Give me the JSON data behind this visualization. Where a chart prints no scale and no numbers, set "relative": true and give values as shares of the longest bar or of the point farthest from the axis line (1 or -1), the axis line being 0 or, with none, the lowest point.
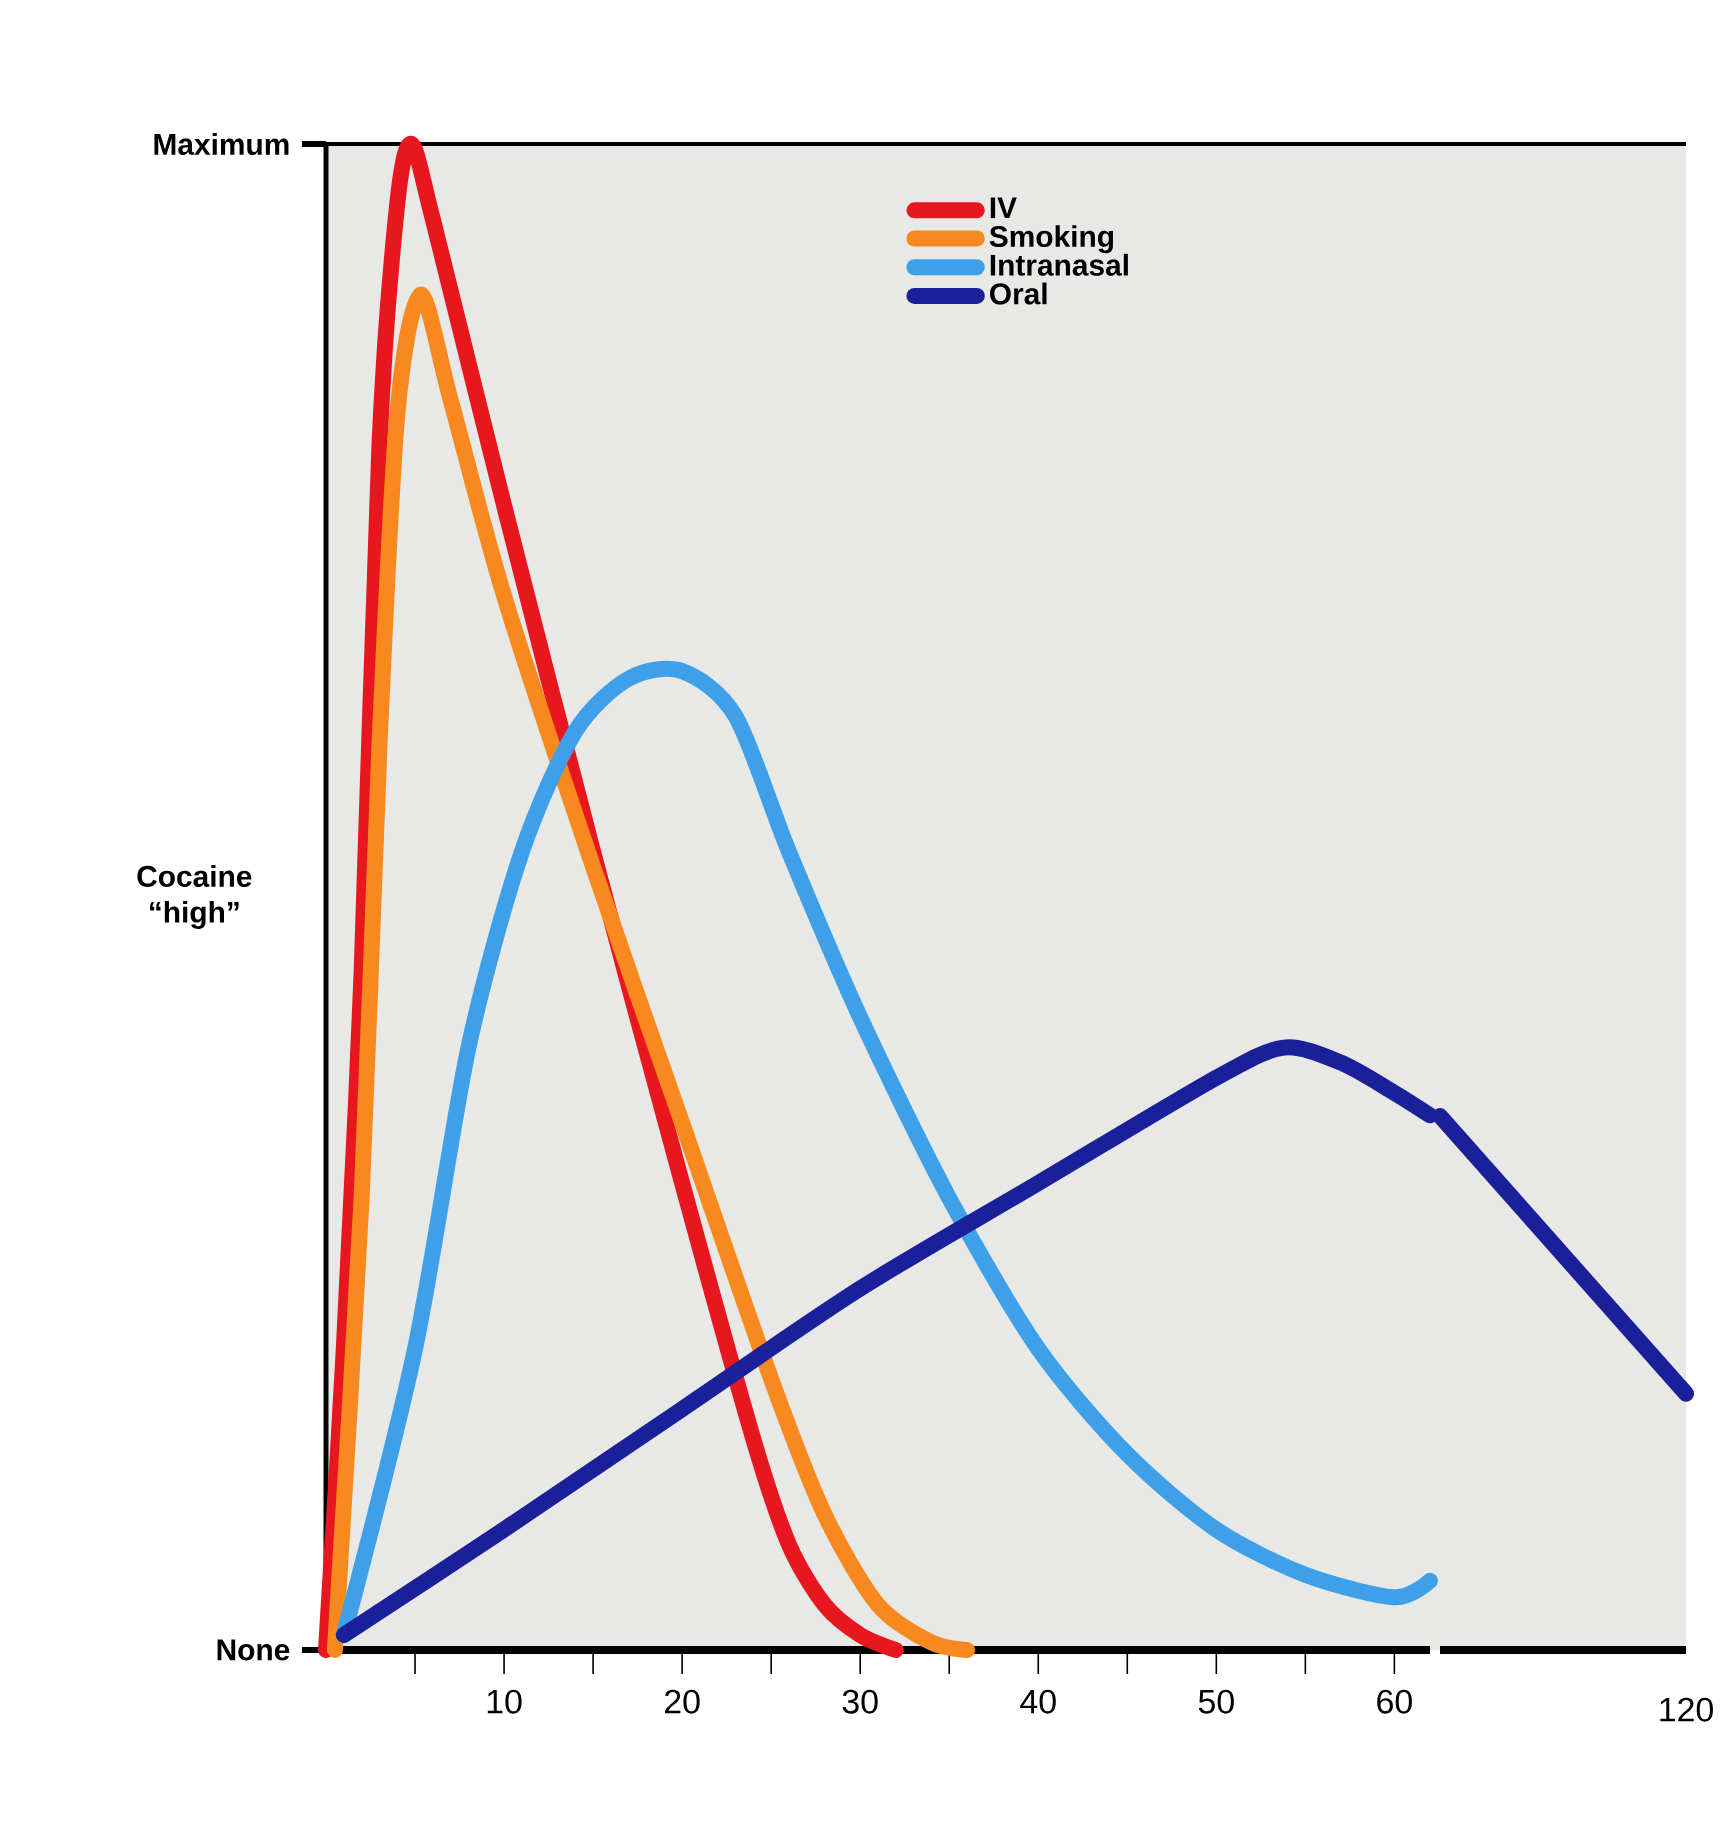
{
  "chart_data": [
    {
      "type": "line",
      "ylabel": "Cocaine “high”",
      "relative": true,
      "xlim": [
        0,
        62
      ],
      "xticks": [
        {
          "value": 5,
          "label": null
        },
        10,
        {
          "value": 15,
          "label": null
        },
        20,
        {
          "value": 25,
          "label": null
        },
        30,
        {
          "value": 35,
          "label": null
        },
        40,
        {
          "value": 45,
          "label": null
        },
        50,
        {
          "value": 55,
          "label": null
        },
        60
      ],
      "annotations": [
        "Maximum",
        "None"
      ],
      "legend": "top",
      "series": [
        {
          "name": "IV",
          "color": "#e8171f",
          "x": [
            0,
            1,
            2,
            3,
            4,
            4.8,
            6,
            10,
            15,
            20,
            24,
            26,
            28,
            30,
            32
          ],
          "values": [
            0,
            0.2,
            0.45,
            0.8,
            0.96,
            1,
            0.95,
            0.76,
            0.53,
            0.31,
            0.14,
            0.07,
            0.03,
            0.01,
            0
          ]
        },
        {
          "name": "Smoking",
          "color": "#f7891f",
          "x": [
            0.5,
            2,
            3,
            4,
            5.3,
            7,
            10,
            15,
            20,
            25,
            28,
            31,
            34,
            36
          ],
          "values": [
            0,
            0.3,
            0.6,
            0.82,
            0.9,
            0.83,
            0.7,
            0.52,
            0.35,
            0.18,
            0.09,
            0.03,
            0.005,
            0
          ]
        },
        {
          "name": "Intranasal",
          "color": "#3fa0ea",
          "x": [
            1,
            5,
            8,
            11,
            14,
            17,
            20,
            23,
            26,
            30,
            35,
            40,
            45,
            50,
            55,
            60,
            62
          ],
          "values": [
            0.01,
            0.2,
            0.4,
            0.53,
            0.61,
            0.645,
            0.65,
            0.62,
            0.53,
            0.42,
            0.3,
            0.2,
            0.13,
            0.08,
            0.05,
            0.035,
            0.046
          ]
        },
        {
          "name": "Oral",
          "color": "#1a1f9a",
          "x": [
            1,
            10,
            20,
            30,
            40,
            50,
            53.8,
            57,
            60,
            62
          ],
          "values": [
            0.01,
            0.08,
            0.16,
            0.24,
            0.31,
            0.38,
            0.4,
            0.39,
            0.37,
            0.355
          ]
        }
      ]
    },
    {
      "type": "line",
      "relative": true,
      "categories": [
        null,
        null
      ],
      "annotations": [
        "120"
      ],
      "series": [
        {
          "color": "#1a1f9a",
          "values": [
            1,
            0.48
          ]
        }
      ]
    }
  ]
}
